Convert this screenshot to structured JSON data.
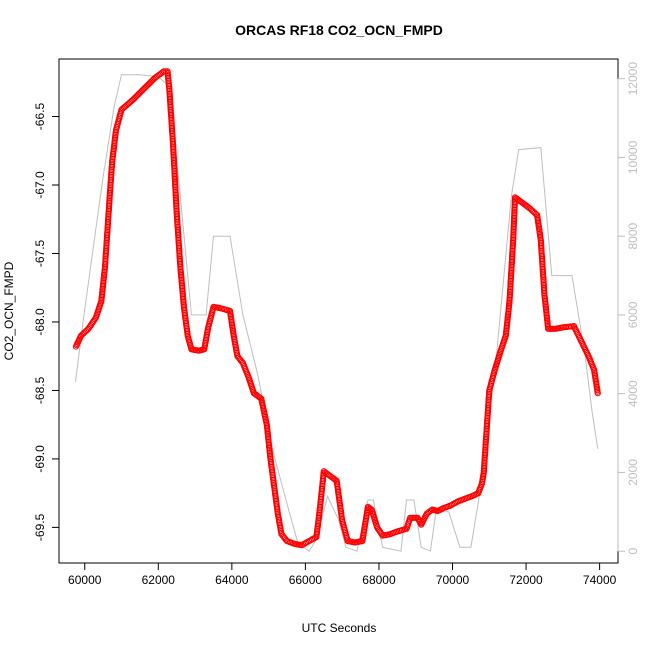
{
  "chart_data": {
    "type": "scatter",
    "title": "ORCAS RF18 CO2_OCN_FMPD",
    "xlabel": "UTC Seconds",
    "ylabel": "CO2_OCN_FMPD",
    "xlim": [
      59300,
      74500
    ],
    "ylim": [
      -69.76,
      -66.08
    ],
    "y2lim": [
      -300,
      12500
    ],
    "xticks": [
      60000,
      62000,
      64000,
      66000,
      68000,
      70000,
      72000,
      74000
    ],
    "yticks": [
      -66.5,
      -67.0,
      -67.5,
      -68.0,
      -68.5,
      -69.0,
      -69.5
    ],
    "y2ticks": [
      0,
      2000,
      4000,
      6000,
      8000,
      10000,
      12000
    ],
    "xtick_labels": [
      "60000",
      "62000",
      "64000",
      "66000",
      "68000",
      "70000",
      "72000",
      "74000"
    ],
    "ytick_labels": [
      "-66.5",
      "-67.0",
      "-67.5",
      "-68.0",
      "-68.5",
      "-69.0",
      "-69.5"
    ],
    "y2tick_labels": [
      "0",
      "2000",
      "4000",
      "6000",
      "8000",
      "10000",
      "12000"
    ],
    "series": [
      {
        "axis": "left",
        "style": "points",
        "color": "#ff0000",
        "points": [
          [
            59760,
            -68.18
          ],
          [
            59900,
            -68.1
          ],
          [
            60100,
            -68.05
          ],
          [
            60300,
            -67.97
          ],
          [
            60450,
            -67.85
          ],
          [
            60550,
            -67.6
          ],
          [
            60600,
            -67.4
          ],
          [
            60650,
            -67.2
          ],
          [
            60700,
            -67.0
          ],
          [
            60750,
            -66.82
          ],
          [
            60850,
            -66.6
          ],
          [
            61000,
            -66.45
          ],
          [
            61300,
            -66.38
          ],
          [
            61600,
            -66.3
          ],
          [
            61900,
            -66.22
          ],
          [
            62150,
            -66.17
          ],
          [
            62250,
            -66.17
          ],
          [
            62300,
            -66.3
          ],
          [
            62400,
            -66.7
          ],
          [
            62500,
            -67.2
          ],
          [
            62600,
            -67.6
          ],
          [
            62700,
            -67.9
          ],
          [
            62800,
            -68.1
          ],
          [
            62900,
            -68.2
          ],
          [
            63100,
            -68.21
          ],
          [
            63250,
            -68.2
          ],
          [
            63350,
            -68.05
          ],
          [
            63500,
            -67.89
          ],
          [
            63700,
            -67.9
          ],
          [
            63950,
            -67.92
          ],
          [
            64050,
            -68.1
          ],
          [
            64150,
            -68.25
          ],
          [
            64300,
            -68.3
          ],
          [
            64450,
            -68.4
          ],
          [
            64600,
            -68.52
          ],
          [
            64800,
            -68.56
          ],
          [
            64950,
            -68.75
          ],
          [
            65050,
            -69.0
          ],
          [
            65150,
            -69.2
          ],
          [
            65250,
            -69.4
          ],
          [
            65350,
            -69.55
          ],
          [
            65500,
            -69.6
          ],
          [
            65700,
            -69.62
          ],
          [
            65900,
            -69.63
          ],
          [
            66100,
            -69.6
          ],
          [
            66300,
            -69.57
          ],
          [
            66400,
            -69.35
          ],
          [
            66500,
            -69.09
          ],
          [
            66650,
            -69.12
          ],
          [
            66850,
            -69.16
          ],
          [
            67000,
            -69.45
          ],
          [
            67150,
            -69.6
          ],
          [
            67350,
            -69.61
          ],
          [
            67550,
            -69.6
          ],
          [
            67700,
            -69.35
          ],
          [
            67800,
            -69.37
          ],
          [
            67950,
            -69.5
          ],
          [
            68100,
            -69.56
          ],
          [
            68300,
            -69.55
          ],
          [
            68500,
            -69.53
          ],
          [
            68750,
            -69.51
          ],
          [
            68850,
            -69.43
          ],
          [
            69050,
            -69.43
          ],
          [
            69150,
            -69.48
          ],
          [
            69300,
            -69.4
          ],
          [
            69450,
            -69.37
          ],
          [
            69600,
            -69.38
          ],
          [
            69750,
            -69.36
          ],
          [
            69950,
            -69.34
          ],
          [
            70150,
            -69.31
          ],
          [
            70350,
            -69.29
          ],
          [
            70550,
            -69.27
          ],
          [
            70700,
            -69.25
          ],
          [
            70800,
            -69.18
          ],
          [
            70850,
            -69.1
          ],
          [
            70900,
            -68.9
          ],
          [
            70950,
            -68.7
          ],
          [
            71000,
            -68.5
          ],
          [
            71150,
            -68.35
          ],
          [
            71300,
            -68.22
          ],
          [
            71450,
            -68.1
          ],
          [
            71550,
            -67.85
          ],
          [
            71650,
            -67.4
          ],
          [
            71700,
            -67.09
          ],
          [
            71900,
            -67.13
          ],
          [
            72100,
            -67.17
          ],
          [
            72300,
            -67.22
          ],
          [
            72400,
            -67.4
          ],
          [
            72500,
            -67.8
          ],
          [
            72600,
            -68.05
          ],
          [
            72800,
            -68.05
          ],
          [
            73000,
            -68.04
          ],
          [
            73300,
            -68.03
          ],
          [
            73500,
            -68.14
          ],
          [
            73700,
            -68.25
          ],
          [
            73850,
            -68.35
          ],
          [
            73950,
            -68.52
          ]
        ]
      },
      {
        "axis": "right",
        "style": "line",
        "color": "#bebebe",
        "points": [
          [
            59750,
            4300
          ],
          [
            59950,
            5800
          ],
          [
            60200,
            7500
          ],
          [
            60500,
            9500
          ],
          [
            60800,
            11300
          ],
          [
            61000,
            12100
          ],
          [
            61500,
            12100
          ],
          [
            62000,
            12050
          ],
          [
            62300,
            11800
          ],
          [
            62600,
            9000
          ],
          [
            62900,
            6000
          ],
          [
            63300,
            6000
          ],
          [
            63500,
            8000
          ],
          [
            63950,
            8000
          ],
          [
            64300,
            6000
          ],
          [
            64700,
            4500
          ],
          [
            65100,
            2600
          ],
          [
            65500,
            1200
          ],
          [
            65800,
            200
          ],
          [
            66100,
            0
          ],
          [
            66300,
            300
          ],
          [
            66600,
            1400
          ],
          [
            66900,
            800
          ],
          [
            67100,
            100
          ],
          [
            67400,
            0
          ],
          [
            67700,
            1300
          ],
          [
            67850,
            1300
          ],
          [
            68100,
            100
          ],
          [
            68600,
            0
          ],
          [
            68750,
            1300
          ],
          [
            68950,
            1300
          ],
          [
            69150,
            100
          ],
          [
            69400,
            0
          ],
          [
            69550,
            1000
          ],
          [
            69900,
            1000
          ],
          [
            70200,
            100
          ],
          [
            70500,
            100
          ],
          [
            70800,
            1800
          ],
          [
            71200,
            5000
          ],
          [
            71600,
            9000
          ],
          [
            71800,
            10200
          ],
          [
            72400,
            10250
          ],
          [
            72700,
            7000
          ],
          [
            73250,
            7000
          ],
          [
            73600,
            5000
          ],
          [
            73800,
            3500
          ],
          [
            73950,
            2600
          ]
        ]
      }
    ],
    "grid": false,
    "legend": "none"
  }
}
